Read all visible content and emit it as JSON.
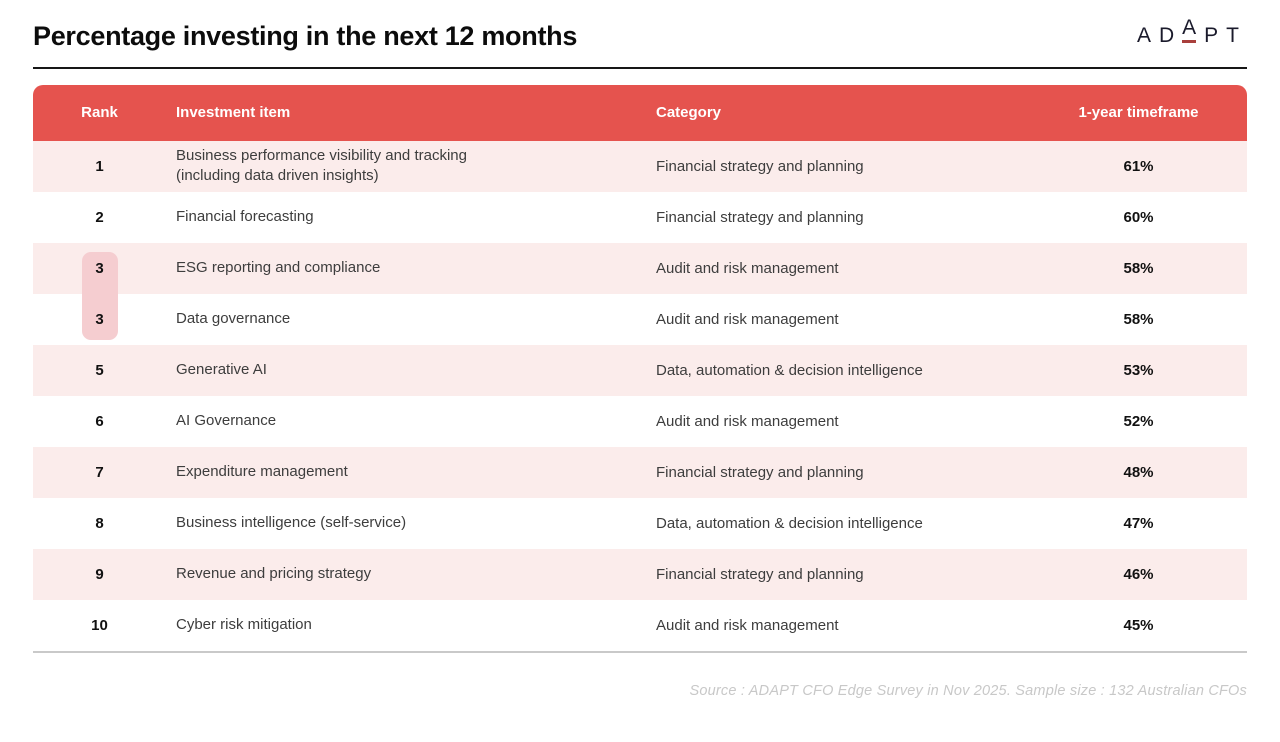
{
  "page_title": "Percentage investing in the next 12 months",
  "logo": {
    "left": "AD",
    "mid": "A",
    "right": "PT"
  },
  "source_note": "Source : ADAPT CFO Edge Survey in Nov 2025. Sample size : 132 Australian CFOs",
  "colors": {
    "header_bg": "#E5534E",
    "row_stripe_bg": "#FBECEB",
    "tie_highlight_bg": "#F5CDD0",
    "logo_underline": "#A93F3C"
  },
  "chart_data": {
    "type": "table",
    "title": "Percentage investing in the next 12 months",
    "columns": [
      "Rank",
      "Investment item",
      "Category",
      "1-year timeframe"
    ],
    "rows": [
      {
        "rank": "1",
        "item": "Business performance visibility and tracking\n(including data driven insights)",
        "category": "Financial strategy and planning",
        "timeframe": "61%"
      },
      {
        "rank": "2",
        "item": "Financial forecasting",
        "category": "Financial strategy and planning",
        "timeframe": "60%"
      },
      {
        "rank": "3",
        "item": "ESG reporting and compliance",
        "category": "Audit and risk management",
        "timeframe": "58%"
      },
      {
        "rank": "3",
        "item": "Data governance",
        "category": "Audit and risk management",
        "timeframe": "58%"
      },
      {
        "rank": "5",
        "item": "Generative AI",
        "category": "Data, automation & decision intelligence",
        "timeframe": "53%"
      },
      {
        "rank": "6",
        "item": "AI Governance",
        "category": "Audit and risk management",
        "timeframe": "52%"
      },
      {
        "rank": "7",
        "item": "Expenditure management",
        "category": "Financial strategy and planning",
        "timeframe": "48%"
      },
      {
        "rank": "8",
        "item": "Business intelligence (self-service)",
        "category": "Data, automation & decision intelligence",
        "timeframe": "47%"
      },
      {
        "rank": "9",
        "item": "Revenue and pricing strategy",
        "category": "Financial strategy and planning",
        "timeframe": "46%"
      },
      {
        "rank": "10",
        "item": "Cyber risk mitigation",
        "category": "Audit and risk management",
        "timeframe": "45%"
      }
    ]
  }
}
